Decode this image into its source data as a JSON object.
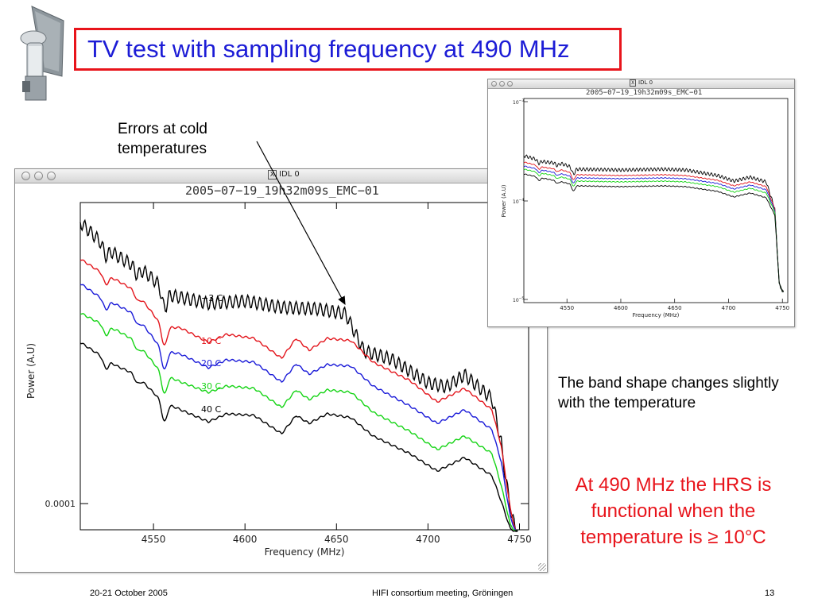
{
  "slide": {
    "title": "TV test with sampling frequency at 490 MHz",
    "annotation_errors": "Errors at cold temperatures",
    "annotation_band": "The band shape changes slightly with the temperature",
    "conclusion": "At 490 MHz the HRS is functional when the temperature is ≥ 10°C",
    "colors": {
      "title": "#1c1cd6",
      "title_border": "#e8141b",
      "conclusion": "#e8141b"
    }
  },
  "footer": {
    "date": "20-21 October 2005",
    "meeting": "HIFI consortium meeting, Gröningen",
    "page": "13"
  },
  "main_window": {
    "title": "IDL 0",
    "x_badge": "X",
    "plot_title": "2005−07−19_19h32m09s_EMC−01"
  },
  "inset_window": {
    "title": "IDL 0",
    "x_badge": "X",
    "plot_title": "2005−07−19_19h32m09s_EMC−01"
  },
  "chart_data": [
    {
      "type": "line",
      "title": "2005−07−19_19h32m09s_EMC−01",
      "xlabel": "Frequency (MHz)",
      "ylabel": "Power (A.U)",
      "xlim": [
        4510,
        4755
      ],
      "x_ticks": [
        4550,
        4600,
        4650,
        4700,
        4750
      ],
      "y_tick_labels": [
        "0.0001"
      ],
      "ylog": true,
      "grid": false,
      "series": [
        {
          "name": "−3 C",
          "color": "#000000",
          "ripple": true,
          "curve": [
            [
              4510,
              283
            ],
            [
              4520,
              305
            ],
            [
              4530,
              325
            ],
            [
              4545,
              345
            ],
            [
              4560,
              375
            ],
            [
              4580,
              385
            ],
            [
              4600,
              382
            ],
            [
              4620,
              390
            ],
            [
              4640,
              392
            ],
            [
              4655,
              398
            ],
            [
              4665,
              445
            ],
            [
              4680,
              455
            ],
            [
              4700,
              485
            ],
            [
              4710,
              490
            ],
            [
              4720,
              475
            ],
            [
              4735,
              505
            ],
            [
              4740,
              560
            ],
            [
              4745,
              640
            ],
            [
              4748,
              668
            ]
          ]
        },
        {
          "name": "10 C",
          "color": "#e3141b",
          "ripple": false,
          "curve": [
            [
              4510,
              325
            ],
            [
              4520,
              340
            ],
            [
              4530,
              352
            ],
            [
              4540,
              365
            ],
            [
              4555,
              410
            ],
            [
              4565,
              412
            ],
            [
              4580,
              430
            ],
            [
              4590,
              420
            ],
            [
              4605,
              425
            ],
            [
              4620,
              450
            ],
            [
              4628,
              425
            ],
            [
              4635,
              440
            ],
            [
              4645,
              425
            ],
            [
              4658,
              428
            ],
            [
              4670,
              455
            ],
            [
              4690,
              478
            ],
            [
              4705,
              505
            ],
            [
              4720,
              488
            ],
            [
              4735,
              515
            ],
            [
              4740,
              560
            ],
            [
              4745,
              640
            ],
            [
              4748,
              668
            ]
          ]
        },
        {
          "name": "20 C",
          "color": "#1a1ad8",
          "ripple": false,
          "curve": [
            [
              4510,
              356
            ],
            [
              4520,
              372
            ],
            [
              4530,
              383
            ],
            [
              4540,
              395
            ],
            [
              4555,
              440
            ],
            [
              4565,
              445
            ],
            [
              4580,
              462
            ],
            [
              4590,
              452
            ],
            [
              4605,
              455
            ],
            [
              4620,
              480
            ],
            [
              4628,
              457
            ],
            [
              4635,
              470
            ],
            [
              4645,
              458
            ],
            [
              4658,
              460
            ],
            [
              4670,
              485
            ],
            [
              4690,
              510
            ],
            [
              4705,
              532
            ],
            [
              4720,
              515
            ],
            [
              4735,
              540
            ],
            [
              4740,
              580
            ],
            [
              4745,
              650
            ],
            [
              4748,
              668
            ]
          ]
        },
        {
          "name": "30 C",
          "color": "#14d414",
          "ripple": false,
          "curve": [
            [
              4510,
              393
            ],
            [
              4520,
              405
            ],
            [
              4530,
              415
            ],
            [
              4540,
              428
            ],
            [
              4555,
              470
            ],
            [
              4565,
              480
            ],
            [
              4580,
              493
            ],
            [
              4590,
              485
            ],
            [
              4605,
              488
            ],
            [
              4620,
              512
            ],
            [
              4628,
              490
            ],
            [
              4635,
              502
            ],
            [
              4645,
              490
            ],
            [
              4658,
              493
            ],
            [
              4670,
              518
            ],
            [
              4690,
              542
            ],
            [
              4705,
              565
            ],
            [
              4720,
              548
            ],
            [
              4735,
              570
            ],
            [
              4740,
              610
            ],
            [
              4745,
              660
            ],
            [
              4748,
              668
            ]
          ]
        },
        {
          "name": "40 C",
          "color": "#000000",
          "ripple": false,
          "curve": [
            [
              4510,
              430
            ],
            [
              4520,
              445
            ],
            [
              4530,
              460
            ],
            [
              4540,
              470
            ],
            [
              4555,
              505
            ],
            [
              4565,
              515
            ],
            [
              4580,
              530
            ],
            [
              4590,
              520
            ],
            [
              4605,
              522
            ],
            [
              4620,
              545
            ],
            [
              4628,
              522
            ],
            [
              4635,
              532
            ],
            [
              4645,
              520
            ],
            [
              4658,
              525
            ],
            [
              4670,
              548
            ],
            [
              4690,
              570
            ],
            [
              4705,
              592
            ],
            [
              4720,
              575
            ],
            [
              4735,
              598
            ],
            [
              4740,
              630
            ],
            [
              4745,
              665
            ],
            [
              4748,
              668
            ]
          ]
        }
      ]
    },
    {
      "type": "line",
      "title": "2005−07−19_19h32m09s_EMC−01",
      "xlabel": "Frequency (MHz)",
      "ylabel": "Power (A.U)",
      "xlim": [
        4510,
        4755
      ],
      "x_ticks": [
        4550,
        4600,
        4650,
        4700,
        4750
      ],
      "y_ticks": [
        {
          "base": "10",
          "exp": "−3"
        },
        {
          "base": "10",
          "exp": "−4"
        },
        {
          "base": "10",
          "exp": "−5"
        }
      ],
      "ylog": true,
      "grid": false,
      "series": [
        {
          "color": "#000000",
          "curve": [
            [
              4510,
              195
            ],
            [
              4530,
              203
            ],
            [
              4545,
              205
            ],
            [
              4560,
              212
            ],
            [
              4600,
              213
            ],
            [
              4640,
              212
            ],
            [
              4660,
              213
            ],
            [
              4690,
              220
            ],
            [
              4705,
              227
            ],
            [
              4720,
              222
            ],
            [
              4735,
              228
            ],
            [
              4743,
              262
            ],
            [
              4747,
              355
            ],
            [
              4750,
              366
            ]
          ]
        },
        {
          "color": "#e3141b",
          "curve": [
            [
              4510,
              203
            ],
            [
              4530,
              210
            ],
            [
              4545,
              213
            ],
            [
              4560,
              219
            ],
            [
              4600,
              220
            ],
            [
              4640,
              219
            ],
            [
              4660,
              220
            ],
            [
              4690,
              226
            ],
            [
              4705,
              233
            ],
            [
              4720,
              228
            ],
            [
              4735,
              234
            ],
            [
              4743,
              262
            ],
            [
              4747,
              355
            ],
            [
              4750,
              366
            ]
          ]
        },
        {
          "color": "#1a1ad8",
          "curve": [
            [
              4510,
              208
            ],
            [
              4530,
              214
            ],
            [
              4545,
              218
            ],
            [
              4560,
              223
            ],
            [
              4600,
              224
            ],
            [
              4640,
              223
            ],
            [
              4660,
              224
            ],
            [
              4690,
              230
            ],
            [
              4705,
              237
            ],
            [
              4720,
              232
            ],
            [
              4735,
              238
            ],
            [
              4743,
              264
            ],
            [
              4747,
              355
            ],
            [
              4750,
              366
            ]
          ]
        },
        {
          "color": "#14d414",
          "curve": [
            [
              4510,
              212
            ],
            [
              4530,
              218
            ],
            [
              4545,
              222
            ],
            [
              4560,
              227
            ],
            [
              4600,
              228
            ],
            [
              4640,
              227
            ],
            [
              4660,
              228
            ],
            [
              4690,
              234
            ],
            [
              4705,
              241
            ],
            [
              4720,
              236
            ],
            [
              4735,
              242
            ],
            [
              4743,
              266
            ],
            [
              4747,
              355
            ],
            [
              4750,
              366
            ]
          ]
        },
        {
          "color": "#000000",
          "curve": [
            [
              4510,
              218
            ],
            [
              4530,
              224
            ],
            [
              4545,
              228
            ],
            [
              4560,
              233
            ],
            [
              4600,
              234
            ],
            [
              4640,
              233
            ],
            [
              4660,
              234
            ],
            [
              4690,
              240
            ],
            [
              4705,
              247
            ],
            [
              4720,
              242
            ],
            [
              4735,
              248
            ],
            [
              4743,
              270
            ],
            [
              4747,
              355
            ],
            [
              4750,
              366
            ]
          ]
        }
      ]
    }
  ]
}
